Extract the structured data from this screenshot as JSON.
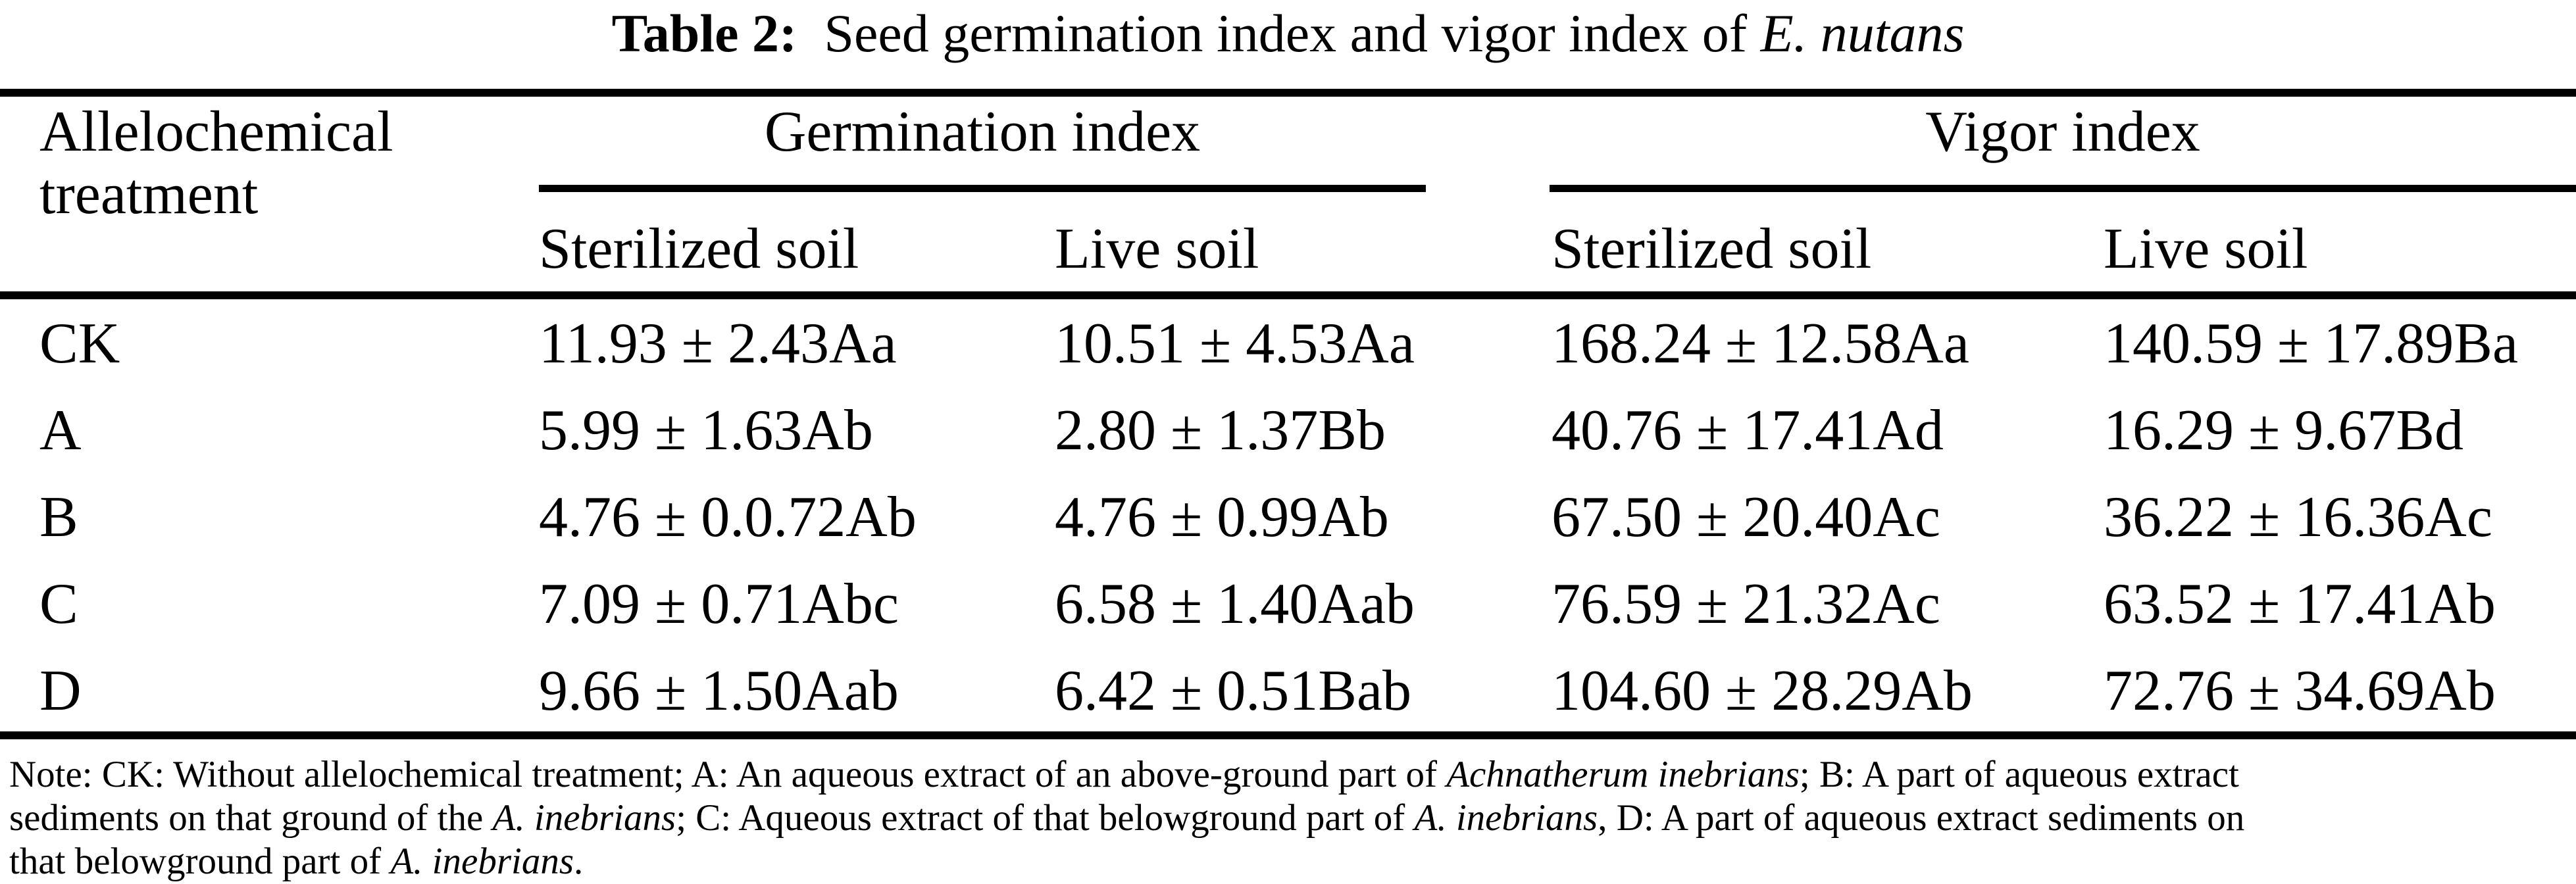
{
  "colors": {
    "background": "#ffffff",
    "text": "#000000",
    "rule": "#000000"
  },
  "title": {
    "segments": [
      {
        "t": "Table 2:",
        "b": true
      },
      {
        "t": "  Seed germination index and vigor index of "
      },
      {
        "t": "E. nutans",
        "i": true
      }
    ]
  },
  "table": {
    "col1_header_line1": "Allelochemical",
    "col1_header_line2": "treatment",
    "group_headers": [
      {
        "label": "Germination index"
      },
      {
        "label": "Vigor index"
      }
    ],
    "sub_headers": [
      "Sterilized soil",
      "Live soil",
      "Sterilized soil",
      "Live soil"
    ],
    "rows": [
      {
        "treatment": "CK",
        "values": [
          "11.93 ± 2.43Aa",
          "10.51 ± 4.53Aa",
          "168.24 ± 12.58Aa",
          "140.59 ± 17.89Ba"
        ]
      },
      {
        "treatment": "A",
        "values": [
          "5.99 ± 1.63Ab",
          "2.80 ± 1.37Bb",
          "40.76 ± 17.41Ad",
          "16.29 ± 9.67Bd"
        ]
      },
      {
        "treatment": "B",
        "values": [
          "4.76 ± 0.0.72Ab",
          "4.76 ± 0.99Ab",
          "67.50 ± 20.40Ac",
          "36.22 ± 16.36Ac"
        ]
      },
      {
        "treatment": "C",
        "values": [
          "7.09 ± 0.71Abc",
          "6.58 ± 1.40Aab",
          "76.59 ± 21.32Ac",
          "63.52 ± 17.41Ab"
        ]
      },
      {
        "treatment": "D",
        "values": [
          "9.66 ± 1.50Aab",
          "6.42 ± 0.51Bab",
          "104.60 ± 28.29Ab",
          "72.76 ± 34.69Ab"
        ]
      }
    ]
  },
  "note": {
    "lines": [
      [
        {
          "t": "Note: CK: Without allelochemical treatment; A: An aqueous extract of an above-ground part of "
        },
        {
          "t": "Achnatherum inebrians",
          "i": true
        },
        {
          "t": "; B: A part of aqueous extract"
        }
      ],
      [
        {
          "t": "sediments on that ground of the "
        },
        {
          "t": "A. inebrians",
          "i": true
        },
        {
          "t": "; C: Aqueous extract of that belowground part of "
        },
        {
          "t": "A. inebrians",
          "i": true
        },
        {
          "t": ", D: A part of aqueous extract sediments on"
        }
      ],
      [
        {
          "t": "that belowground part of "
        },
        {
          "t": "A. inebrians",
          "i": true
        },
        {
          "t": "."
        }
      ]
    ]
  }
}
